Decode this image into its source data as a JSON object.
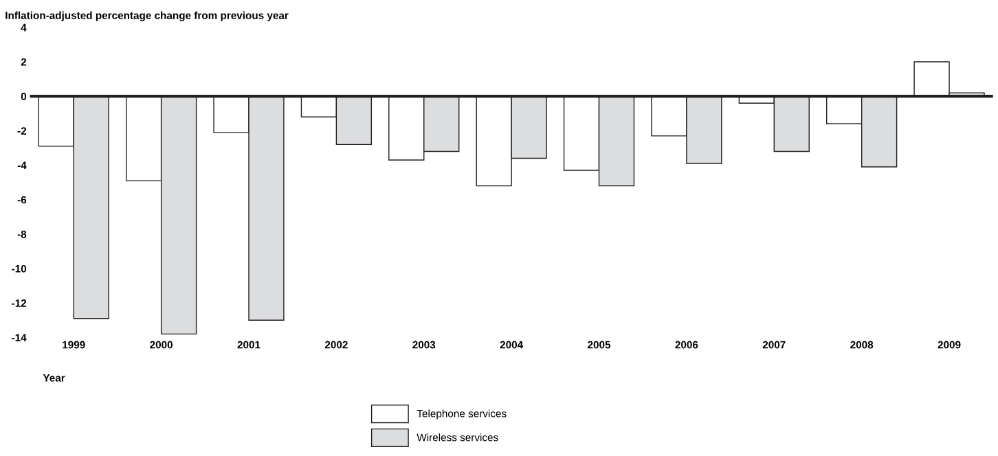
{
  "chart_data": {
    "type": "bar",
    "ylabel": "Inflation-adjusted percentage change from previous year",
    "xlabel": "Year",
    "categories": [
      "1999",
      "2000",
      "2001",
      "2002",
      "2003",
      "2004",
      "2005",
      "2006",
      "2007",
      "2008",
      "2009"
    ],
    "series": [
      {
        "name": "Telephone services",
        "color": "#ffffff",
        "values": [
          -2.9,
          -4.9,
          -2.1,
          -1.2,
          -3.7,
          -5.2,
          -4.3,
          -2.3,
          -0.4,
          -1.6,
          2.0
        ]
      },
      {
        "name": "Wireless services",
        "color": "#dcdddf",
        "values": [
          -12.9,
          -13.8,
          -13.0,
          -2.8,
          -3.2,
          -3.6,
          -5.2,
          -3.9,
          -3.2,
          -4.1,
          0.2
        ]
      }
    ],
    "ylim": [
      -14,
      4
    ],
    "yticks": [
      -14,
      -12,
      -10,
      -8,
      -6,
      -4,
      -2,
      0,
      2,
      4
    ],
    "ref_lines": [
      {
        "axis": "y",
        "value": 0,
        "color": "#231f20"
      }
    ],
    "grid": false,
    "legend": "bottom"
  }
}
